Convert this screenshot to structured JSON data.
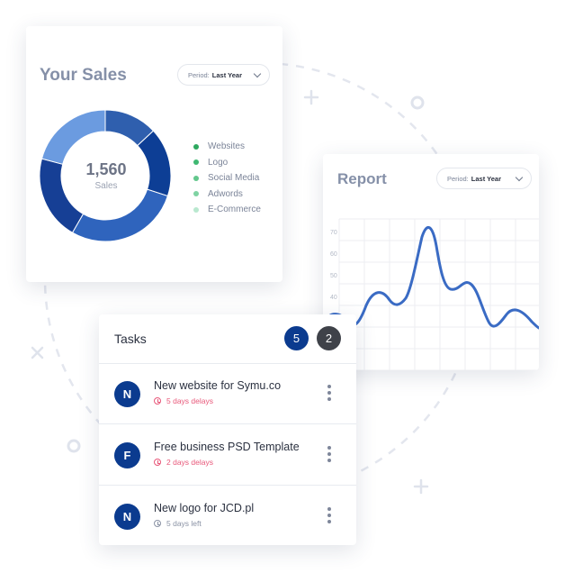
{
  "sales": {
    "title": "Your Sales",
    "period_label": "Period:",
    "period_value": "Last Year",
    "total": "1,560",
    "total_label": "Sales",
    "legend": [
      {
        "label": "Websites",
        "color": "#2ea85f"
      },
      {
        "label": "Logo",
        "color": "#3fb872"
      },
      {
        "label": "Social Media",
        "color": "#62c78c"
      },
      {
        "label": "Adwords",
        "color": "#7fd3a3"
      },
      {
        "label": "E-Commerce",
        "color": "#b9e8cf"
      }
    ],
    "segment_colors": [
      "#2f5fae",
      "#0d3e95",
      "#2f64bd",
      "#163f95",
      "#6b9be0"
    ]
  },
  "report": {
    "title": "Report",
    "period_label": "Period:",
    "period_value": "Last Year",
    "chart_data": {
      "type": "line",
      "y_ticks": [
        "70",
        "60",
        "50",
        "40"
      ],
      "line_color": "#3a6bc4"
    }
  },
  "tasks": {
    "title": "Tasks",
    "badge_count_1": "5",
    "badge_count_2": "2",
    "items": [
      {
        "initial": "N",
        "name": "New website for Symu.co",
        "status": "5 days delays"
      },
      {
        "initial": "F",
        "name": "Free business PSD Template",
        "status": "2 days delays"
      },
      {
        "initial": "N",
        "name": "New logo for JCD.pl",
        "status": "5 days left"
      }
    ]
  }
}
